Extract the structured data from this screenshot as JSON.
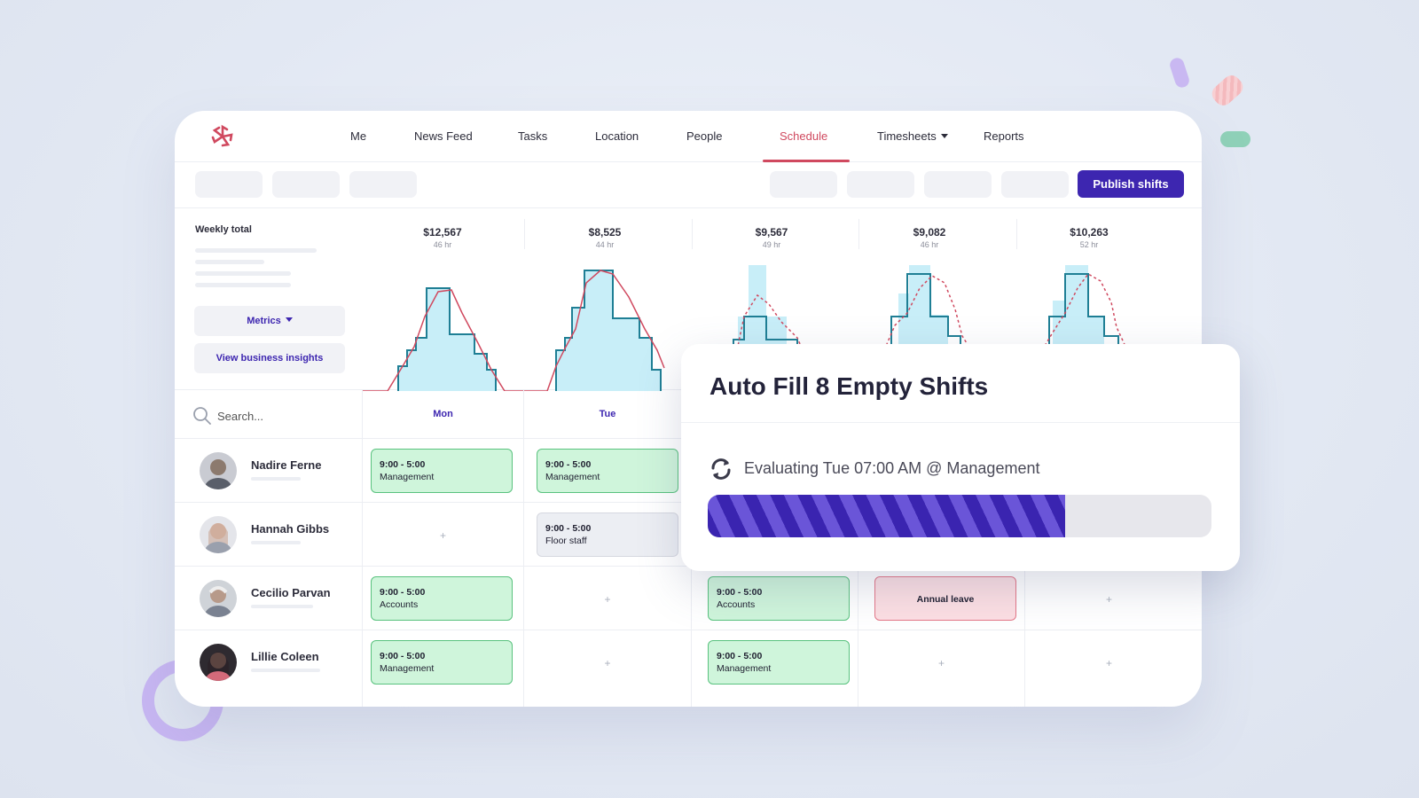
{
  "nav": {
    "items": [
      {
        "label": "Me"
      },
      {
        "label": "News Feed"
      },
      {
        "label": "Tasks"
      },
      {
        "label": "Location"
      },
      {
        "label": "People"
      },
      {
        "label": "Schedule",
        "active": true
      },
      {
        "label": "Timesheets",
        "dropdown": true
      },
      {
        "label": "Reports"
      }
    ]
  },
  "toolbar": {
    "publish_label": "Publish shifts"
  },
  "insights": {
    "weekly_total_label": "Weekly total",
    "metrics_label": "Metrics",
    "business_insights_label": "View business insights",
    "days": [
      {
        "cost": "$12,567",
        "hours": "46 hr"
      },
      {
        "cost": "$8,525",
        "hours": "44 hr"
      },
      {
        "cost": "$9,567",
        "hours": "49 hr"
      },
      {
        "cost": "$9,082",
        "hours": "46 hr"
      },
      {
        "cost": "$10,263",
        "hours": "52 hr"
      }
    ]
  },
  "search": {
    "placeholder": "Search..."
  },
  "day_headers": [
    "Mon",
    "Tue"
  ],
  "employees": [
    {
      "name": "Nadire Ferne"
    },
    {
      "name": "Hannah Gibbs"
    },
    {
      "name": "Cecilio Parvan"
    },
    {
      "name": "Lillie Coleen"
    }
  ],
  "shifts": {
    "nadire_mon": {
      "time": "9:00 - 5:00",
      "role": "Management"
    },
    "nadire_tue": {
      "time": "9:00 - 5:00",
      "role": "Management"
    },
    "hannah_tue": {
      "time": "9:00 - 5:00",
      "role": "Floor staff"
    },
    "cecilio_mon": {
      "time": "9:00 - 5:00",
      "role": "Accounts"
    },
    "cecilio_wed": {
      "time": "9:00 - 5:00",
      "role": "Accounts"
    },
    "cecilio_thu": {
      "label": "Annual leave"
    },
    "lillie_mon": {
      "time": "9:00 - 5:00",
      "role": "Management"
    },
    "lillie_wed": {
      "time": "9:00 - 5:00",
      "role": "Management"
    }
  },
  "add_shift_symbol": "+",
  "modal": {
    "title": "Auto Fill 8 Empty Shifts",
    "status": "Evaluating Tue 07:00 AM @ Management",
    "progress": 0.71
  },
  "colors": {
    "brand": "#3d26b0",
    "accent": "#d0495f",
    "shift_green": "#cff5db",
    "leave_pink": "#fcdfe3",
    "chart_fill": "#c8eef8",
    "chart_step": "#1f7f95",
    "chart_forecast": "#d0495f"
  },
  "icons": {
    "logo": "pinwheel-logo-icon",
    "search": "search-icon",
    "sync": "sync-icon"
  }
}
